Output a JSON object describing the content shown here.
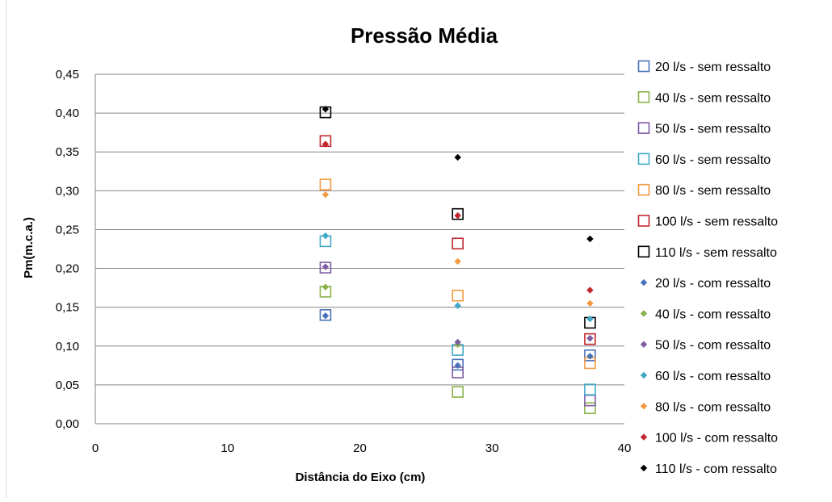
{
  "chart_data": {
    "type": "scatter",
    "title": "Pressão Média",
    "xlabel": "Distância do Eixo (cm)",
    "ylabel": "Pm(m.c.a.)",
    "xlim": [
      0,
      40
    ],
    "ylim": [
      0,
      0.45
    ],
    "x_ticks": [
      0,
      10,
      20,
      30,
      40
    ],
    "y_ticks": [
      0,
      0.05,
      0.1,
      0.15,
      0.2,
      0.25,
      0.3,
      0.35,
      0.4,
      0.45
    ],
    "x_tick_labels": [
      "0",
      "10",
      "20",
      "30",
      "40"
    ],
    "y_tick_labels": [
      "0,00",
      "0,05",
      "0,10",
      "0,15",
      "0,20",
      "0,25",
      "0,30",
      "0,35",
      "0,40",
      "0,45"
    ],
    "grid": "horizontal",
    "legend_position": "right",
    "series": [
      {
        "name": "20 l/s - sem ressalto",
        "marker": "square",
        "color": "#4a72b8",
        "x": [
          17.4,
          27.4,
          37.4
        ],
        "y": [
          0.14,
          0.076,
          0.088
        ]
      },
      {
        "name": "40 l/s - sem ressalto",
        "marker": "square",
        "color": "#8ab24a",
        "x": [
          17.4,
          27.4,
          37.4
        ],
        "y": [
          0.17,
          0.041,
          0.02
        ]
      },
      {
        "name": "50 l/s - sem ressalto",
        "marker": "square",
        "color": "#7d5ca3",
        "x": [
          17.4,
          27.4,
          37.4
        ],
        "y": [
          0.201,
          0.066,
          0.03
        ]
      },
      {
        "name": "60 l/s - sem ressalto",
        "marker": "square",
        "color": "#3fa8c6",
        "x": [
          17.4,
          27.4,
          37.4
        ],
        "y": [
          0.235,
          0.095,
          0.044
        ]
      },
      {
        "name": "80 l/s - sem ressalto",
        "marker": "square",
        "color": "#f39a43",
        "x": [
          17.4,
          27.4,
          37.4
        ],
        "y": [
          0.308,
          0.165,
          0.078
        ]
      },
      {
        "name": "100 l/s - sem ressalto",
        "marker": "square",
        "color": "#c1272d",
        "x": [
          17.4,
          27.4,
          37.4
        ],
        "y": [
          0.364,
          0.232,
          0.109
        ]
      },
      {
        "name": "110 l/s - sem ressalto",
        "marker": "square",
        "color": "#000000",
        "x": [
          17.4,
          27.4,
          37.4
        ],
        "y": [
          0.401,
          0.27,
          0.13
        ]
      },
      {
        "name": "20 l/s - com ressalto",
        "marker": "diamond",
        "color": "#4a72b8",
        "x": [
          17.4,
          27.4,
          37.4
        ],
        "y": [
          0.139,
          0.075,
          0.087
        ]
      },
      {
        "name": "40 l/s - com ressalto",
        "marker": "diamond",
        "color": "#8ab24a",
        "x": [
          17.4,
          27.4,
          37.4
        ],
        "y": [
          0.176,
          0.102,
          0.11
        ]
      },
      {
        "name": "50 l/s - com ressalto",
        "marker": "diamond",
        "color": "#7d5ca3",
        "x": [
          17.4,
          27.4,
          37.4
        ],
        "y": [
          0.202,
          0.105,
          0.11
        ]
      },
      {
        "name": "60 l/s - com ressalto",
        "marker": "diamond",
        "color": "#3fa8c6",
        "x": [
          17.4,
          27.4,
          37.4
        ],
        "y": [
          0.242,
          0.152,
          0.135
        ]
      },
      {
        "name": "80 l/s - com ressalto",
        "marker": "diamond",
        "color": "#f39a43",
        "x": [
          17.4,
          27.4,
          37.4
        ],
        "y": [
          0.295,
          0.209,
          0.155
        ]
      },
      {
        "name": "100 l/s - com ressalto",
        "marker": "diamond",
        "color": "#c1272d",
        "x": [
          17.4,
          27.4,
          37.4
        ],
        "y": [
          0.36,
          0.268,
          0.172
        ]
      },
      {
        "name": "110 l/s - com ressalto",
        "marker": "diamond",
        "color": "#000000",
        "x": [
          17.4,
          27.4,
          37.4
        ],
        "y": [
          0.405,
          0.343,
          0.238
        ]
      }
    ]
  }
}
